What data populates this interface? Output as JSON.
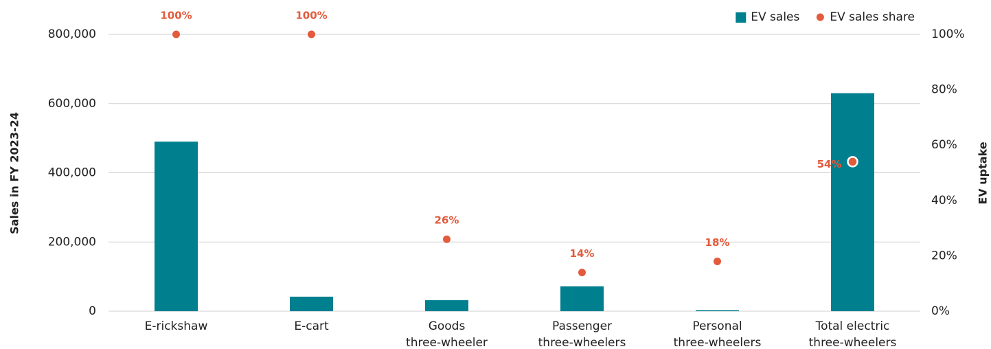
{
  "chart_data": {
    "type": "bar",
    "categories": [
      "E-rickshaw",
      "E-cart",
      "Goods three-wheeler",
      "Passenger three-wheelers",
      "Personal three-wheelers",
      "Total electric three-wheelers"
    ],
    "ylabel": "Sales in FY 2023-24",
    "y2label": "EV uptake",
    "ylim": [
      0,
      800000
    ],
    "yticks": [
      {
        "value": 0,
        "label": "0"
      },
      {
        "value": 200000,
        "label": "200,000"
      },
      {
        "value": 400000,
        "label": "400,000"
      },
      {
        "value": 600000,
        "label": "600,000"
      },
      {
        "value": 800000,
        "label": "800,000"
      }
    ],
    "y2lim": [
      0,
      100
    ],
    "y2ticks": [
      {
        "value": 0,
        "label": "0%"
      },
      {
        "value": 20,
        "label": "20%"
      },
      {
        "value": 40,
        "label": "40%"
      },
      {
        "value": 60,
        "label": "60%"
      },
      {
        "value": 80,
        "label": "80%"
      },
      {
        "value": 100,
        "label": "100%"
      }
    ],
    "grid": true,
    "legend": "top-right",
    "series": [
      {
        "name": "EV sales",
        "type": "bar",
        "color": "#007f8f",
        "values": [
          490000,
          42000,
          32000,
          72000,
          3000,
          630000
        ]
      },
      {
        "name": "EV sales share",
        "type": "scatter",
        "axis": "y2",
        "color": "#e35a3c",
        "values": [
          100,
          100,
          26,
          14,
          18,
          54
        ],
        "value_labels": [
          "100%",
          "100%",
          "26%",
          "14%",
          "18%",
          "54%"
        ]
      }
    ]
  }
}
